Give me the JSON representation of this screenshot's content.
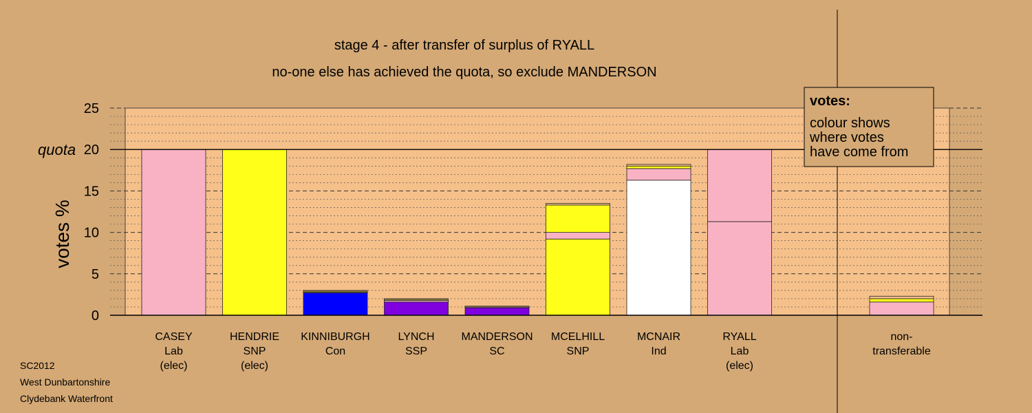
{
  "chart_data": {
    "type": "bar",
    "stacked": true,
    "title": "stage 4 - after transfer of surplus of RYALL",
    "subtitle": "no-one else has achieved the quota, so exclude MANDERSON",
    "ylabel": "votes %",
    "ylim": [
      0,
      25
    ],
    "yticks": [
      "0",
      "5",
      "10",
      "15",
      "20",
      "25"
    ],
    "quota": {
      "value": 20,
      "label": "quota"
    },
    "grid": true,
    "legend": {
      "title": "votes:",
      "lines": [
        "colour shows",
        "where votes",
        "have come from"
      ],
      "placement": "top-right"
    },
    "colors": {
      "Lab": "#f9b2c4",
      "SNP": "#ffff19",
      "Con": "#0000ff",
      "SSP": "#8000e0",
      "SC": "#8000e0",
      "Ind": "#ffffff",
      "Other": "#f5c08a",
      "plot_bg": "#f5c08a",
      "page_bg": "#d4a976"
    },
    "bars": [
      {
        "name": "CASEY",
        "lines": [
          "CASEY",
          "Lab",
          "(elec)"
        ],
        "segments": [
          {
            "value": 20.0,
            "color": "#f9b2c4"
          }
        ]
      },
      {
        "name": "HENDRIE",
        "lines": [
          "HENDRIE",
          "SNP",
          "(elec)"
        ],
        "segments": [
          {
            "value": 20.0,
            "color": "#ffff19"
          }
        ]
      },
      {
        "name": "KINNIBURGH",
        "lines": [
          "KINNIBURGH",
          "Con"
        ],
        "segments": [
          {
            "value": 2.7,
            "color": "#0000ff"
          },
          {
            "value": 0.1,
            "color": "#f9b2c4"
          },
          {
            "value": 0.1,
            "color": "#ffff19"
          },
          {
            "value": 0.1,
            "color": "#f5c08a"
          }
        ]
      },
      {
        "name": "LYNCH",
        "lines": [
          "LYNCH",
          "SSP"
        ],
        "segments": [
          {
            "value": 1.6,
            "color": "#8000e0"
          },
          {
            "value": 0.2,
            "color": "#f9b2c4"
          },
          {
            "value": 0.1,
            "color": "#ffff19"
          },
          {
            "value": 0.1,
            "color": "#f5c08a"
          }
        ]
      },
      {
        "name": "MANDERSON",
        "lines": [
          "MANDERSON",
          "SC"
        ],
        "segments": [
          {
            "value": 0.9,
            "color": "#8000e0"
          },
          {
            "value": 0.1,
            "color": "#f9b2c4"
          },
          {
            "value": 0.1,
            "color": "#f5c08a"
          }
        ]
      },
      {
        "name": "MCELHILL",
        "lines": [
          "MCELHILL",
          "SNP"
        ],
        "segments": [
          {
            "value": 9.2,
            "color": "#ffff19"
          },
          {
            "value": 0.8,
            "color": "#f9b2c4"
          },
          {
            "value": 3.3,
            "color": "#ffff19"
          },
          {
            "value": 0.2,
            "color": "#f5c08a"
          }
        ]
      },
      {
        "name": "MCNAIR",
        "lines": [
          "MCNAIR",
          "Ind"
        ],
        "segments": [
          {
            "value": 16.3,
            "color": "#ffffff"
          },
          {
            "value": 1.4,
            "color": "#f9b2c4"
          },
          {
            "value": 0.3,
            "color": "#ffff19"
          },
          {
            "value": 0.2,
            "color": "#f5c08a"
          }
        ]
      },
      {
        "name": "RYALL",
        "lines": [
          "RYALL",
          "Lab",
          "(elec)"
        ],
        "segments": [
          {
            "value": 11.3,
            "color": "#f9b2c4"
          },
          {
            "value": 8.7,
            "color": "#f9b2c4"
          }
        ]
      },
      {
        "name": "non-transferable",
        "lines": [
          "non-",
          "transferable"
        ],
        "separate": true,
        "segments": [
          {
            "value": 1.6,
            "color": "#f9b2c4"
          },
          {
            "value": 0.4,
            "color": "#ffff19"
          },
          {
            "value": 0.3,
            "color": "#f5c08a"
          }
        ]
      }
    ]
  },
  "footer": {
    "line1": "SC2012",
    "line2": "West Dunbartonshire",
    "line3": "Clydebank Waterfront"
  }
}
